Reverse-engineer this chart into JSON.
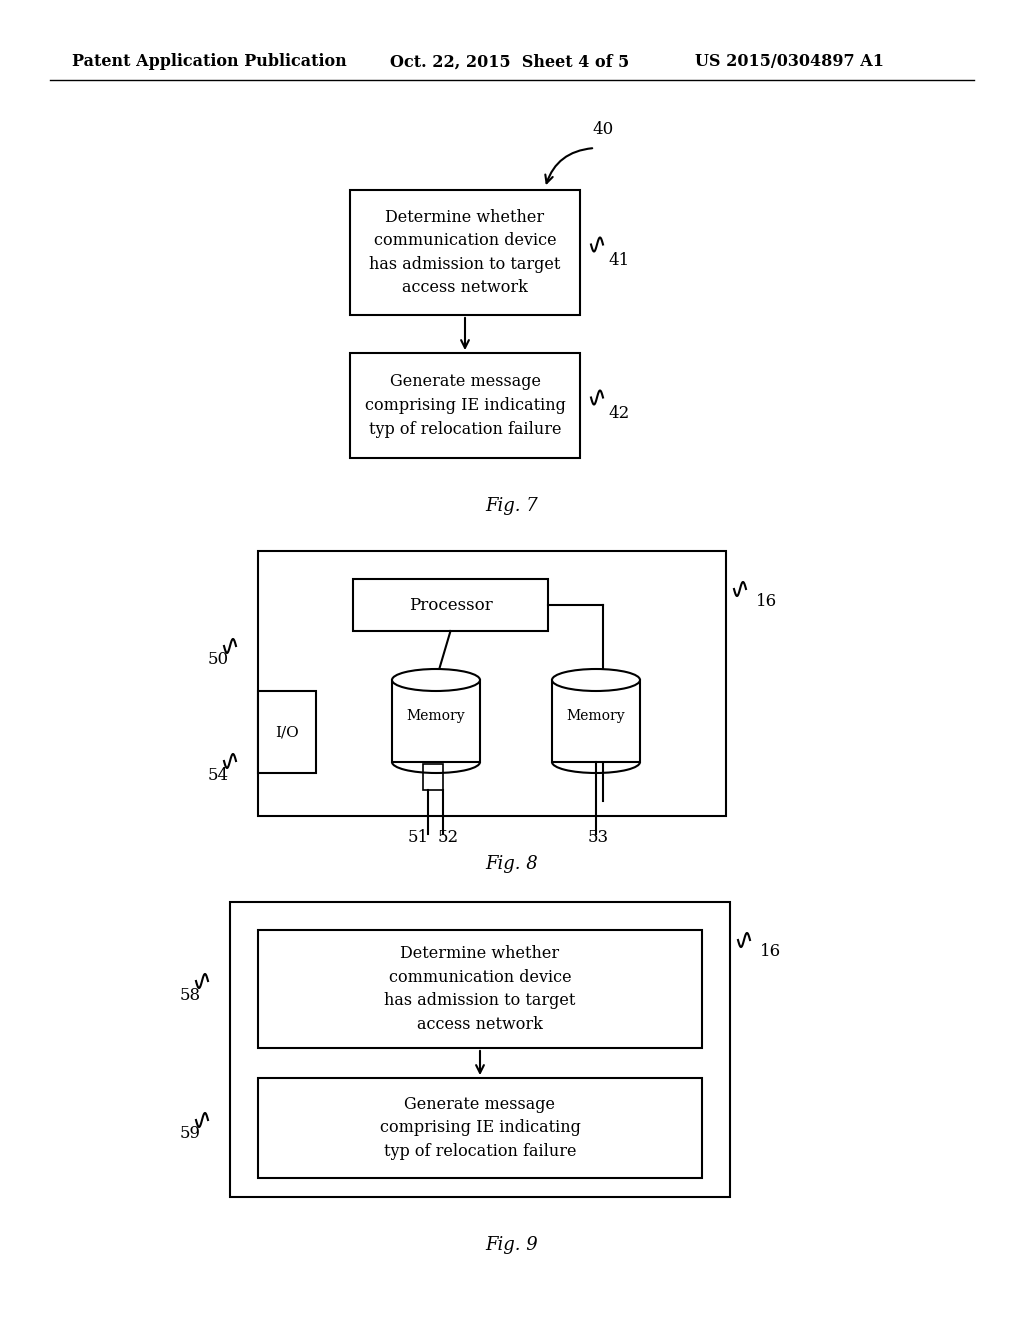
{
  "bg_color": "#ffffff",
  "header_left": "Patent Application Publication",
  "header_mid": "Oct. 22, 2015  Sheet 4 of 5",
  "header_right": "US 2015/0304897 A1",
  "fig7_label": "Fig. 7",
  "fig8_label": "Fig. 8",
  "fig9_label": "Fig. 9",
  "box1_text": "Determine whether\ncommunication device\nhas admission to target\naccess network",
  "box2_text": "Generate message\ncomprising IE indicating\ntyp of relocation failure",
  "box58_text": "Determine whether\ncommunication device\nhas admission to target\naccess network",
  "box59_text": "Generate message\ncomprising IE indicating\ntyp of relocation failure",
  "label_40": "40",
  "label_41": "41",
  "label_42": "42",
  "label_16a": "16",
  "label_16b": "16",
  "label_50": "50",
  "label_51": "51",
  "label_52": "52",
  "label_53": "53",
  "label_54": "54",
  "label_58": "58",
  "label_59": "59",
  "proc_text": "Processor",
  "mem1_text": "Memory",
  "mem2_text": "Memory",
  "io_text": "I/O"
}
